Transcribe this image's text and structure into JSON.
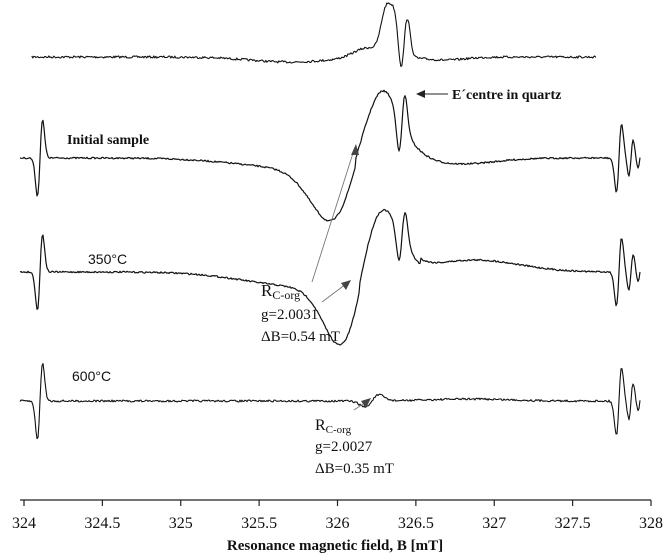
{
  "chart_data": {
    "type": "line",
    "xlabel": "Resonance magnetic field, B [mT]",
    "ylabel": "",
    "xlim": [
      324,
      328
    ],
    "x_ticks": [
      "324",
      "324.5",
      "325",
      "325.5",
      "326",
      "326.5",
      "327",
      "327.5",
      "328"
    ],
    "ylim": null,
    "grid": false,
    "legend": "none",
    "series": [
      {
        "id": "quartz",
        "name": "",
        "description": "top spectrum, baseline with sharp E' signal near 326.35 mT",
        "x_range": [
          324.05,
          327.65
        ]
      },
      {
        "name": "Initial sample",
        "x_range": [
          324.0,
          327.9
        ]
      },
      {
        "name": "350°C",
        "x_range": [
          324.0,
          327.9
        ]
      },
      {
        "name": "600°C",
        "x_range": [
          324.0,
          327.9
        ]
      }
    ],
    "annotations": {
      "e_centre": "E´centre in quartz",
      "rc_org_350": {
        "label": "Rc-org",
        "g": "g=2.0031",
        "dB": "ΔB=0.54 mT"
      },
      "rc_org_600": {
        "label": "Rc-org",
        "g": "g=2.0027",
        "dB": "ΔB=0.35 mT"
      }
    }
  },
  "labels": {
    "initial": "Initial sample",
    "t350": "350°C",
    "t600": "600°C",
    "e_centre": "E´centre in quartz",
    "rc_350": "R",
    "rc_350_sub": "C-org",
    "g_350": "g=2.0031",
    "db_350": "ΔB=0.54 mT",
    "rc_600": "R",
    "rc_600_sub": "C-org",
    "g_600": "g=2.0027",
    "db_600": "ΔB=0.35 mT",
    "xlabel": "Resonance magnetic field, B [mT]"
  },
  "ticks": [
    "324",
    "324.5",
    "325",
    "325.5",
    "326",
    "326.5",
    "327",
    "327.5",
    "328"
  ],
  "colors": {
    "line": "#111111",
    "axis": "#222222",
    "arrow": "#444444"
  }
}
